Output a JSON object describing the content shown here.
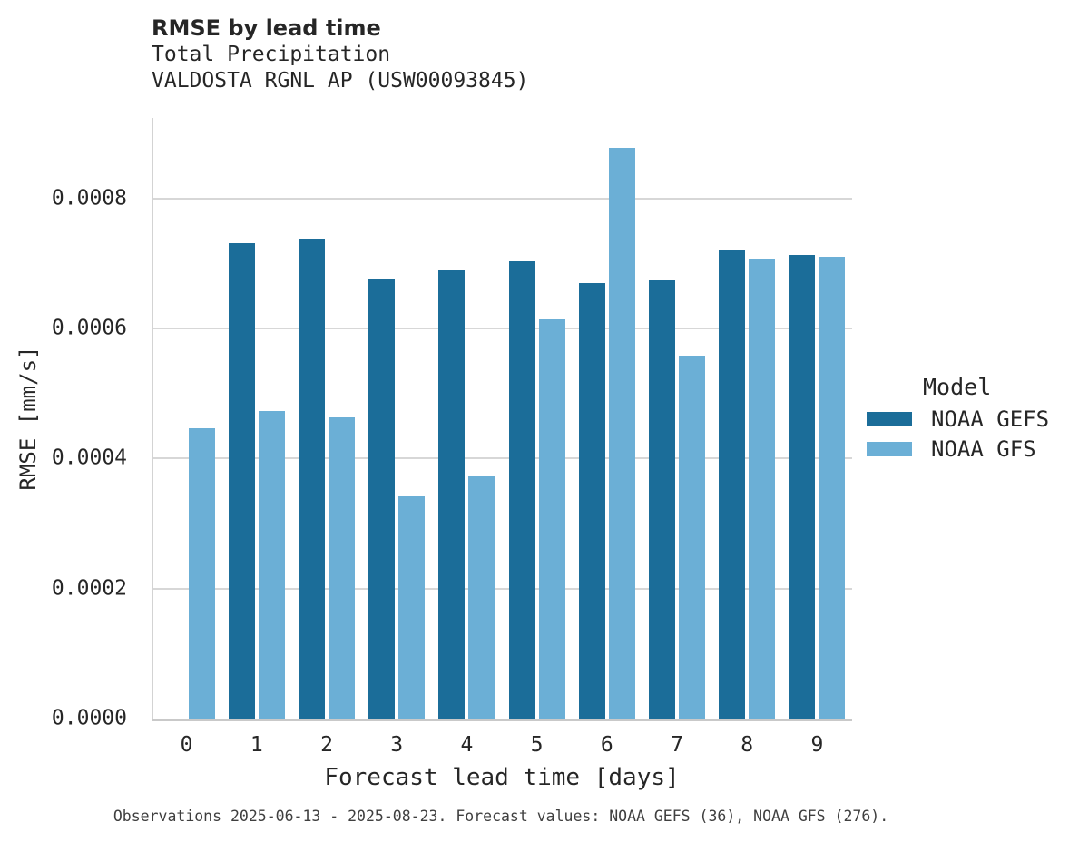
{
  "chart_data": {
    "type": "bar",
    "title": "RMSE by lead time",
    "subtitle": [
      "Total Precipitation",
      "VALDOSTA RGNL AP (USW00093845)"
    ],
    "xlabel": "Forecast lead time [days]",
    "ylabel": "RMSE [mm/s]",
    "categories": [
      "0",
      "1",
      "2",
      "3",
      "4",
      "5",
      "6",
      "7",
      "8",
      "9"
    ],
    "series": [
      {
        "name": "NOAA GEFS",
        "color": "#1b6d99",
        "values": [
          null,
          0.000731,
          0.000739,
          0.000677,
          0.00069,
          0.000703,
          0.00067,
          0.000674,
          0.000722,
          0.000713
        ]
      },
      {
        "name": "NOAA GFS",
        "color": "#6bafd6",
        "values": [
          0.000446,
          0.000473,
          0.000464,
          0.000342,
          0.000372,
          0.000614,
          0.000878,
          0.000558,
          0.000707,
          0.000711
        ]
      }
    ],
    "ylim": [
      0,
      0.000924
    ],
    "yticks": [
      {
        "value": 0.0,
        "label": "0.0000"
      },
      {
        "value": 0.0002,
        "label": "0.0002"
      },
      {
        "value": 0.0004,
        "label": "0.0004"
      },
      {
        "value": 0.0006,
        "label": "0.0006"
      },
      {
        "value": 0.0008,
        "label": "0.0008"
      }
    ],
    "grid": "horizontal",
    "legend_position": "right"
  },
  "legend": {
    "title": "Model",
    "items": [
      {
        "label": "NOAA GEFS",
        "color": "#1b6d99"
      },
      {
        "label": "NOAA GFS",
        "color": "#6bafd6"
      }
    ]
  },
  "caption": "Observations 2025-06-13 - 2025-08-23. Forecast values: NOAA GEFS (36), NOAA GFS (276).",
  "colors": {
    "bar_dark": "#1b6d99",
    "bar_light": "#6bafd6",
    "gridline": "#d7d7d7",
    "axis": "#c9c9c9",
    "text": "#262626",
    "background": "#ffffff"
  }
}
